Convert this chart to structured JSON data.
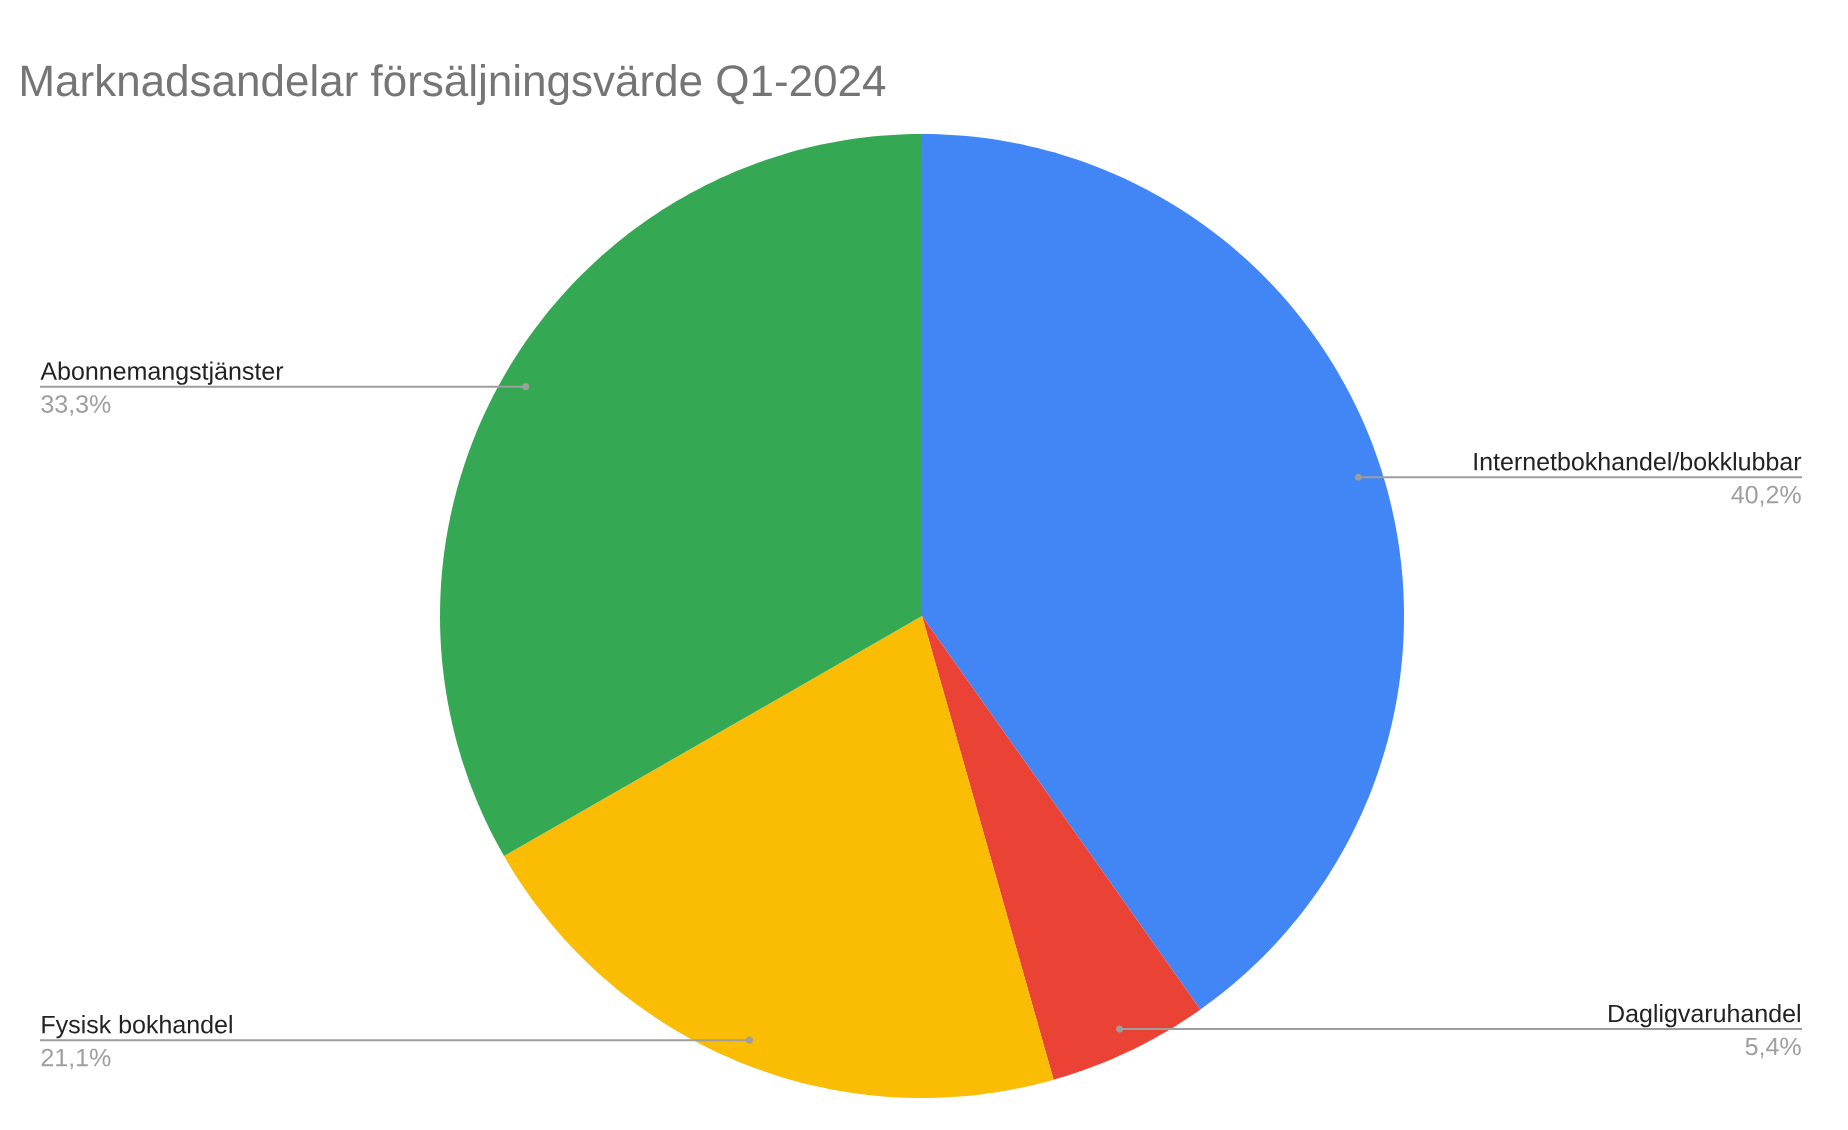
{
  "chart_data": {
    "type": "pie",
    "title": "Marknadsandelar försäljningsvärde Q1-2024",
    "categories": [
      "Internetbokhandel/bokklubbar",
      "Dagligvaruhandel",
      "Fysisk bokhandel",
      "Abonnemangstjänster"
    ],
    "values": [
      40.2,
      5.4,
      21.1,
      33.3
    ],
    "value_labels": [
      "40,2%",
      "5,4%",
      "21,1%",
      "33,3%"
    ],
    "colors": [
      "#4285f4",
      "#ea4335",
      "#fbbc04",
      "#34a853"
    ]
  }
}
